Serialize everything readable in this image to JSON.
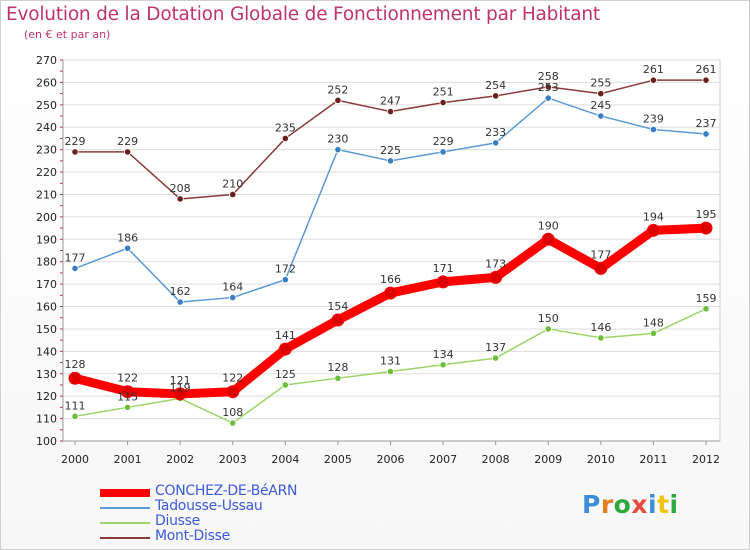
{
  "header": {
    "title": "Evolution de la Dotation Globale de Fonctionnement par Habitant",
    "subtitle": "(en € et par an)"
  },
  "brand": {
    "logo": "Proxiti",
    "letters": [
      "P",
      "r",
      "o",
      "x",
      "i",
      "t",
      "i"
    ],
    "colors": [
      "#3b8fd8",
      "#e67e22",
      "#2eaa3c",
      "#e74c3c",
      "#3b8fd8",
      "#f1c40f",
      "#2eaa3c"
    ]
  },
  "chart_data": {
    "type": "line",
    "title": "Evolution de la Dotation Globale de Fonctionnement par Habitant",
    "subtitle": "(en € et par an)",
    "xlabel": "",
    "ylabel": "",
    "x": [
      "2000",
      "2001",
      "2002",
      "2003",
      "2004",
      "2005",
      "2006",
      "2007",
      "2008",
      "2009",
      "2010",
      "2011",
      "2012"
    ],
    "ylim": [
      100,
      270
    ],
    "yticks": [
      100,
      110,
      120,
      130,
      140,
      150,
      160,
      170,
      180,
      190,
      200,
      210,
      220,
      230,
      240,
      250,
      260,
      270
    ],
    "grid": "horizontal",
    "legend_position": "bottom-left",
    "series": [
      {
        "name": "CONCHEZ-DE-BéARN",
        "color": "#ff0000",
        "point_color": "#dd0000",
        "values": [
          128,
          122,
          121,
          122,
          141,
          154,
          166,
          171,
          173,
          190,
          177,
          194,
          195
        ]
      },
      {
        "name": "Tadousse-Ussau",
        "color": "#5b9bd5",
        "point_color": "#3a7fc3",
        "values": [
          177,
          186,
          162,
          164,
          172,
          230,
          225,
          229,
          233,
          253,
          245,
          239,
          237
        ]
      },
      {
        "name": "Diusse",
        "color": "#9ed46a",
        "point_color": "#6cbf3a",
        "values": [
          111,
          115,
          119,
          108,
          125,
          128,
          131,
          134,
          137,
          150,
          146,
          148,
          159
        ]
      },
      {
        "name": "Mont-Disse",
        "color": "#8b3a3a",
        "point_color": "#6b1f1f",
        "values": [
          229,
          229,
          208,
          210,
          235,
          252,
          247,
          251,
          254,
          258,
          255,
          261,
          261
        ]
      }
    ]
  }
}
